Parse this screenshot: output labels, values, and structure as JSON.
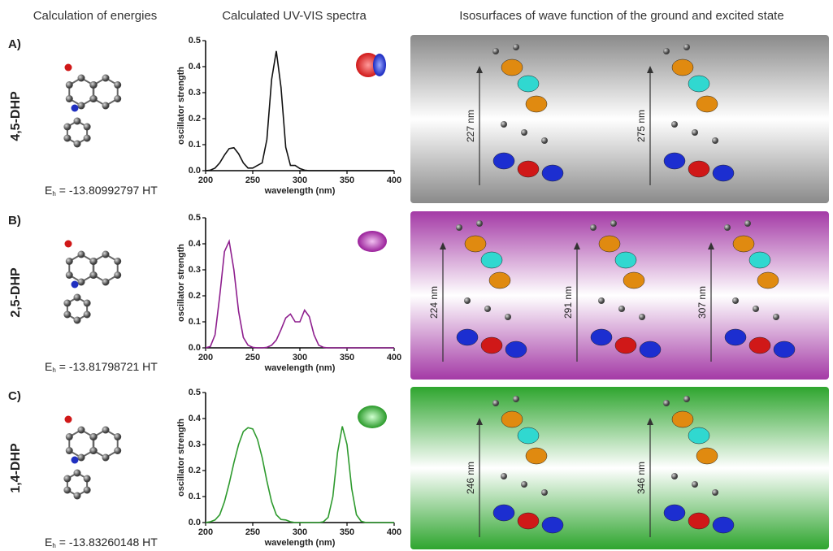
{
  "headers": [
    "Calculation of energies",
    "Calculated UV-VIS spectra",
    "Isosurfaces of wave function of the ground and excited state"
  ],
  "rows": [
    {
      "letter": "A)",
      "name": "4,5-DHP",
      "energy": {
        "symbol": "E",
        "subscript": "h",
        "text": "= -13.80992797 HT"
      },
      "transitions": [
        "227 nm",
        "275 nm"
      ]
    },
    {
      "letter": "B)",
      "name": "2,5-DHP",
      "energy": {
        "symbol": "E",
        "subscript": "h",
        "text": "= -13.81798721 HT"
      },
      "transitions": [
        "224 nm",
        "291 nm",
        "307 nm"
      ]
    },
    {
      "letter": "C)",
      "name": "1,4-DHP",
      "energy": {
        "symbol": "E",
        "subscript": "h",
        "text": "= -13.83260148 HT"
      },
      "transitions": [
        "246 nm",
        "346 nm"
      ]
    }
  ],
  "chart_data": [
    {
      "type": "line",
      "ylabel": "oscillator strength",
      "xlabel": "wavelength (nm)",
      "x": [
        200,
        205,
        210,
        215,
        220,
        225,
        230,
        235,
        240,
        245,
        250,
        255,
        260,
        265,
        270,
        275,
        280,
        285,
        290,
        295,
        300,
        305,
        310,
        315,
        320,
        325,
        330,
        335,
        340,
        345,
        350,
        355,
        360,
        365,
        370,
        375,
        380,
        385,
        390,
        395,
        400
      ],
      "series": [
        {
          "color": "#111111",
          "values": [
            0,
            0.002,
            0.01,
            0.03,
            0.06,
            0.085,
            0.088,
            0.065,
            0.03,
            0.01,
            0.01,
            0.02,
            0.03,
            0.12,
            0.35,
            0.46,
            0.32,
            0.09,
            0.02,
            0.02,
            0.008,
            0.002,
            0,
            0,
            0,
            0,
            0,
            0,
            0,
            0,
            0,
            0,
            0,
            0,
            0,
            0,
            0,
            0,
            0,
            0,
            0
          ]
        }
      ],
      "xlim": [
        200,
        400
      ],
      "ylim": [
        0,
        0.5
      ],
      "xticks": [
        200,
        250,
        300,
        350,
        400
      ],
      "yticks": [
        {
          "value": 0,
          "label": "0.0"
        },
        0.1,
        0.2,
        0.3,
        0.4,
        0.5
      ]
    },
    {
      "type": "line",
      "ylabel": "oscillator strength",
      "xlabel": "wavelength (nm)",
      "x": [
        200,
        205,
        210,
        215,
        220,
        225,
        230,
        235,
        240,
        245,
        250,
        255,
        260,
        265,
        270,
        275,
        280,
        285,
        290,
        295,
        300,
        305,
        310,
        315,
        320,
        325,
        330,
        335,
        340,
        345,
        350,
        355,
        360,
        365,
        370,
        375,
        380,
        385,
        390,
        395,
        400
      ],
      "series": [
        {
          "color": "#8e1f8e",
          "values": [
            0,
            0.005,
            0.05,
            0.2,
            0.37,
            0.41,
            0.3,
            0.14,
            0.04,
            0.01,
            0.002,
            0,
            0,
            0.002,
            0.01,
            0.03,
            0.07,
            0.115,
            0.13,
            0.1,
            0.1,
            0.145,
            0.12,
            0.05,
            0.01,
            0.002,
            0,
            0,
            0,
            0,
            0,
            0,
            0,
            0,
            0,
            0,
            0,
            0,
            0,
            0,
            0
          ]
        }
      ],
      "xlim": [
        200,
        400
      ],
      "ylim": [
        0,
        0.5
      ],
      "xticks": [
        200,
        250,
        300,
        350,
        400
      ],
      "yticks": [
        {
          "value": 0,
          "label": "0.0"
        },
        0.1,
        0.2,
        0.3,
        0.4,
        0.5
      ]
    },
    {
      "type": "line",
      "ylabel": "oscillator strength",
      "xlabel": "wavelength (nm)",
      "x": [
        200,
        205,
        210,
        215,
        220,
        225,
        230,
        235,
        240,
        245,
        250,
        255,
        260,
        265,
        270,
        275,
        280,
        285,
        290,
        295,
        300,
        305,
        310,
        315,
        320,
        325,
        330,
        335,
        340,
        345,
        350,
        355,
        360,
        365,
        370,
        375,
        380,
        385,
        390,
        395,
        400
      ],
      "series": [
        {
          "color": "#2e9a2e",
          "values": [
            0,
            0.003,
            0.01,
            0.03,
            0.08,
            0.15,
            0.23,
            0.3,
            0.35,
            0.365,
            0.36,
            0.32,
            0.25,
            0.16,
            0.08,
            0.03,
            0.012,
            0.01,
            0.003,
            0,
            0,
            0,
            0,
            0,
            0,
            0.003,
            0.02,
            0.1,
            0.27,
            0.37,
            0.3,
            0.13,
            0.03,
            0.005,
            0,
            0,
            0,
            0,
            0,
            0,
            0
          ]
        }
      ],
      "xlim": [
        200,
        400
      ],
      "ylim": [
        0,
        0.5
      ],
      "xticks": [
        200,
        250,
        300,
        350,
        400
      ],
      "yticks": [
        {
          "value": 0,
          "label": "0.0"
        },
        0.1,
        0.2,
        0.3,
        0.4,
        0.5
      ]
    }
  ]
}
